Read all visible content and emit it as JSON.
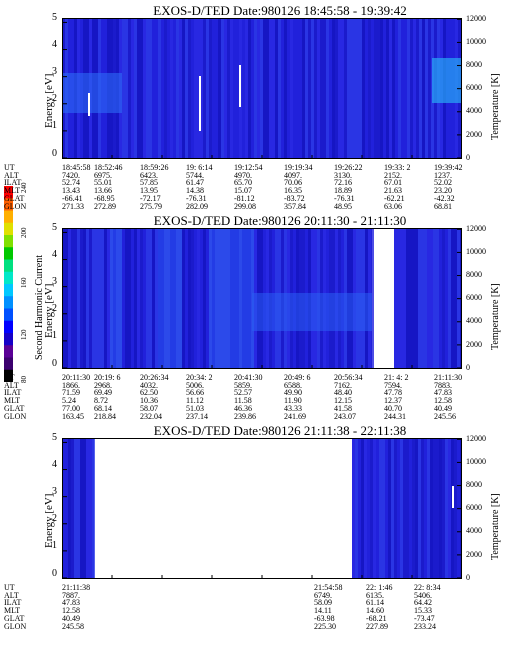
{
  "colorbar": {
    "label": "Second Harmonic Current",
    "ticks": [
      "80",
      "120",
      "160",
      "200",
      "240"
    ],
    "colors": [
      "#000000",
      "#3b006e",
      "#5a0096",
      "#1500c8",
      "#0000ff",
      "#0050ff",
      "#0090ff",
      "#00c8ff",
      "#00e8c8",
      "#00e080",
      "#00c800",
      "#80e000",
      "#e0e000",
      "#ffb000",
      "#ff6000",
      "#ff0000"
    ]
  },
  "panels": [
    {
      "title": "EXOS-D/TED   Date:980126  18:45:58 - 19:39:42",
      "ylabel": "Energy [eV]",
      "y2label": "Temperature [K]",
      "yticks": [
        "5",
        "4",
        "3",
        "2",
        "1",
        "0"
      ],
      "y2ticks": [
        "12000",
        "10000",
        "8000",
        "6000",
        "4000",
        "2000",
        "0"
      ],
      "rows": [
        {
          "name": "UT",
          "vals": [
            "18:45:58",
            "18:52:46",
            "18:59:26",
            "19: 6:14",
            "19:12:54",
            "19:19:34",
            "19:26:22",
            "19:33: 2",
            "19:39:42"
          ]
        },
        {
          "name": "ALT",
          "vals": [
            "7420.",
            "6975.",
            "6423.",
            "5744.",
            "4970.",
            "4097.",
            "3130.",
            "2152.",
            "1237."
          ]
        },
        {
          "name": "ILAT",
          "vals": [
            "52.74",
            "55.01",
            "57.85",
            "61.47",
            "65.70",
            "70.06",
            "72.16",
            "67.01",
            "52.02"
          ]
        },
        {
          "name": "MLT",
          "vals": [
            "13.43",
            "13.66",
            "13.95",
            "14.38",
            "15.07",
            "16.35",
            "18.89",
            "21.63",
            "23.20"
          ]
        },
        {
          "name": "GLAT",
          "vals": [
            "-66.41",
            "-68.95",
            "-72.17",
            "-76.31",
            "-81.12",
            "-83.72",
            "-76.31",
            "-62.21",
            "-42.32"
          ]
        },
        {
          "name": "GLON",
          "vals": [
            "271.33",
            "272.89",
            "275.79",
            "282.09",
            "299.08",
            "357.84",
            "48.95",
            "63.06",
            "68.81"
          ]
        }
      ]
    },
    {
      "title": "EXOS-D/TED   Date:980126  20:11:30 - 21:11:30",
      "ylabel": "Energy [eV]",
      "y2label": "Temperature [K]",
      "yticks": [
        "5",
        "4",
        "3",
        "2",
        "1",
        "0"
      ],
      "y2ticks": [
        "12000",
        "10000",
        "8000",
        "6000",
        "4000",
        "2000",
        "0"
      ],
      "rows": [
        {
          "name": "UT",
          "vals": [
            "20:11:30",
            "20:19: 6",
            "20:26:34",
            "20:34: 2",
            "20:41:30",
            "20:49: 6",
            "20:56:34",
            "21: 4: 2",
            "21:11:30"
          ]
        },
        {
          "name": "ALT",
          "vals": [
            "1866.",
            "2968.",
            "4032.",
            "5006.",
            "5859.",
            "6588.",
            "7162.",
            "7594.",
            "7883."
          ]
        },
        {
          "name": "ILAT",
          "vals": [
            "71.59",
            "69.49",
            "62.50",
            "56.66",
            "52.57",
            "49.90",
            "48.40",
            "47.78",
            "47.83"
          ]
        },
        {
          "name": "MLT",
          "vals": [
            "5.24",
            "8.72",
            "10.36",
            "11.12",
            "11.58",
            "11.90",
            "12.15",
            "12.37",
            "12.58"
          ]
        },
        {
          "name": "GLAT",
          "vals": [
            "77.00",
            "68.14",
            "58.07",
            "51.03",
            "46.36",
            "43.33",
            "41.58",
            "40.70",
            "40.49"
          ]
        },
        {
          "name": "GLON",
          "vals": [
            "163.45",
            "218.84",
            "232.04",
            "237.14",
            "239.86",
            "241.69",
            "243.07",
            "244.31",
            "245.56"
          ]
        }
      ]
    },
    {
      "title": "EXOS-D/TED   Date:980126  21:11:38 - 22:11:38",
      "ylabel": "Energy [eV]",
      "y2label": "Temperature [K]",
      "yticks": [
        "5",
        "4",
        "3",
        "2",
        "1",
        "0"
      ],
      "y2ticks": [
        "12000",
        "10000",
        "8000",
        "6000",
        "4000",
        "2000",
        "0"
      ],
      "rows": [
        {
          "name": "UT",
          "vals": [
            "21:11:38",
            "21:54:58",
            "22: 1:46",
            "22: 8:34"
          ]
        },
        {
          "name": "ALT",
          "vals": [
            "7887.",
            "6749.",
            "6135.",
            "5406."
          ]
        },
        {
          "name": "ILAT",
          "vals": [
            "47.83",
            "58.09",
            "61.14",
            "64.42"
          ]
        },
        {
          "name": "MLT",
          "vals": [
            "12.58",
            "14.11",
            "14.60",
            "15.33"
          ]
        },
        {
          "name": "GLAT",
          "vals": [
            "40.49",
            "-63.98",
            "-68.21",
            "-73.47"
          ]
        },
        {
          "name": "GLON",
          "vals": [
            "245.58",
            "225.30",
            "227.89",
            "233.24"
          ]
        }
      ]
    }
  ],
  "chart_data": [
    {
      "type": "heatmap",
      "title": "EXOS-D/TED   Date:980126  18:45:58 - 19:39:42",
      "xlabel": "UT",
      "ylabel": "Energy [eV]",
      "y2label": "Temperature [K]",
      "ylim": [
        0,
        5
      ],
      "y2lim": [
        0,
        12000
      ],
      "x": [
        "18:45:58",
        "19:39:42"
      ],
      "data_gaps": []
    },
    {
      "type": "heatmap",
      "title": "EXOS-D/TED   Date:980126  20:11:30 - 21:11:30",
      "xlabel": "UT",
      "ylabel": "Energy [eV]",
      "y2label": "Temperature [K]",
      "ylim": [
        0,
        5
      ],
      "y2lim": [
        0,
        12000
      ],
      "x": [
        "20:11:30",
        "21:11:30"
      ]
    },
    {
      "type": "heatmap",
      "title": "EXOS-D/TED   Date:980126  21:11:38 - 22:11:38",
      "xlabel": "UT",
      "ylabel": "Energy [eV]",
      "y2label": "Temperature [K]",
      "ylim": [
        0,
        5
      ],
      "y2lim": [
        0,
        12000
      ],
      "x": [
        "21:11:38",
        "22:11:38"
      ]
    }
  ]
}
